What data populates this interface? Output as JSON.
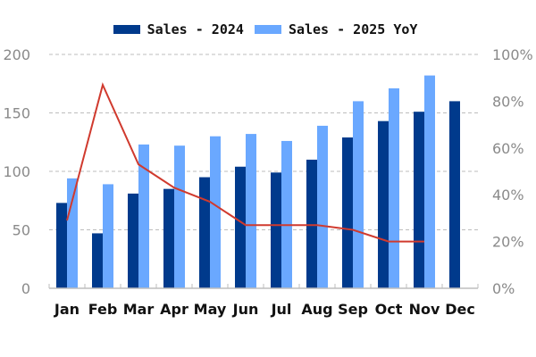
{
  "chart_data": {
    "type": "bar",
    "title": "",
    "xlabel": "",
    "ylabel": "",
    "categories": [
      "Jan",
      "Feb",
      "Mar",
      "Apr",
      "May",
      "Jun",
      "Jul",
      "Aug",
      "Sep",
      "Oct",
      "Nov",
      "Dec"
    ],
    "series": [
      {
        "name": "Sales - 2024",
        "type": "bar",
        "axis": "left",
        "color": "#003A8C",
        "values": [
          73,
          47,
          81,
          85,
          95,
          104,
          99,
          110,
          129,
          143,
          151,
          160
        ]
      },
      {
        "name": "Sales - 2025",
        "type": "bar",
        "axis": "left",
        "color": "#6AA8FF",
        "values": [
          94,
          89,
          123,
          122,
          130,
          132,
          126,
          139,
          160,
          171,
          182,
          null
        ]
      },
      {
        "name": "YoY",
        "type": "line",
        "axis": "right",
        "color": "#D03A2E",
        "unit": "%",
        "values": [
          29,
          87,
          53,
          43,
          37,
          27,
          27,
          27,
          25,
          20,
          20,
          null
        ]
      }
    ],
    "ylim": [
      0,
      200
    ],
    "yticks": [
      0,
      50,
      100,
      150,
      200
    ],
    "y2lim": [
      0,
      100
    ],
    "y2ticks": [
      "0%",
      "20%",
      "40%",
      "60%",
      "80%",
      "100%"
    ],
    "grid": true,
    "legend_position": "top"
  },
  "legend": {
    "items": [
      {
        "label": "Sales - 2024",
        "color": "#003A8C"
      },
      {
        "label": "Sales - 2025 YoY",
        "color": "#6AA8FF"
      }
    ]
  }
}
